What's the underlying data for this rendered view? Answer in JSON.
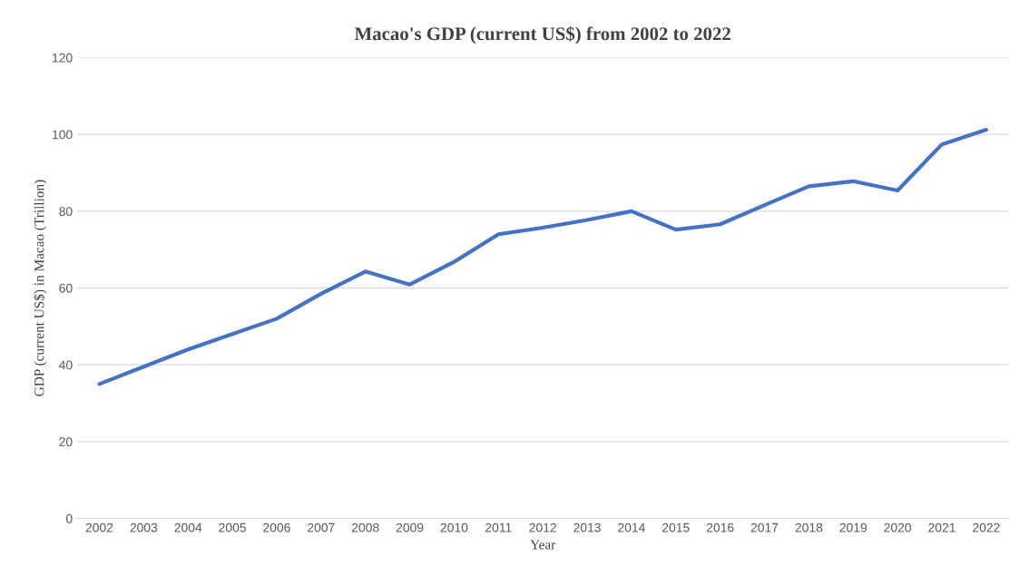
{
  "chart_data": {
    "type": "line",
    "title": "Macao's GDP (current US$) from 2002 to 2022",
    "xlabel": "Year",
    "ylabel": "GDP (current US$) in Macao (Trillion)",
    "categories": [
      "2002",
      "2003",
      "2004",
      "2005",
      "2006",
      "2007",
      "2008",
      "2009",
      "2010",
      "2011",
      "2012",
      "2013",
      "2014",
      "2015",
      "2016",
      "2017",
      "2018",
      "2019",
      "2020",
      "2021",
      "2022"
    ],
    "series": [
      {
        "color": "#4472c4",
        "values": [
          35,
          39.5,
          44,
          48,
          52,
          58.5,
          64.3,
          60.9,
          66.8,
          74,
          75.7,
          77.7,
          80,
          75.2,
          76.6,
          81.6,
          86.5,
          87.8,
          85.4,
          97.4,
          101.2
        ]
      }
    ],
    "ylim": [
      0,
      120
    ],
    "yticks": [
      0,
      20,
      40,
      60,
      80,
      100,
      120
    ],
    "grid": "y",
    "marker": "none",
    "line_style": "solid"
  }
}
